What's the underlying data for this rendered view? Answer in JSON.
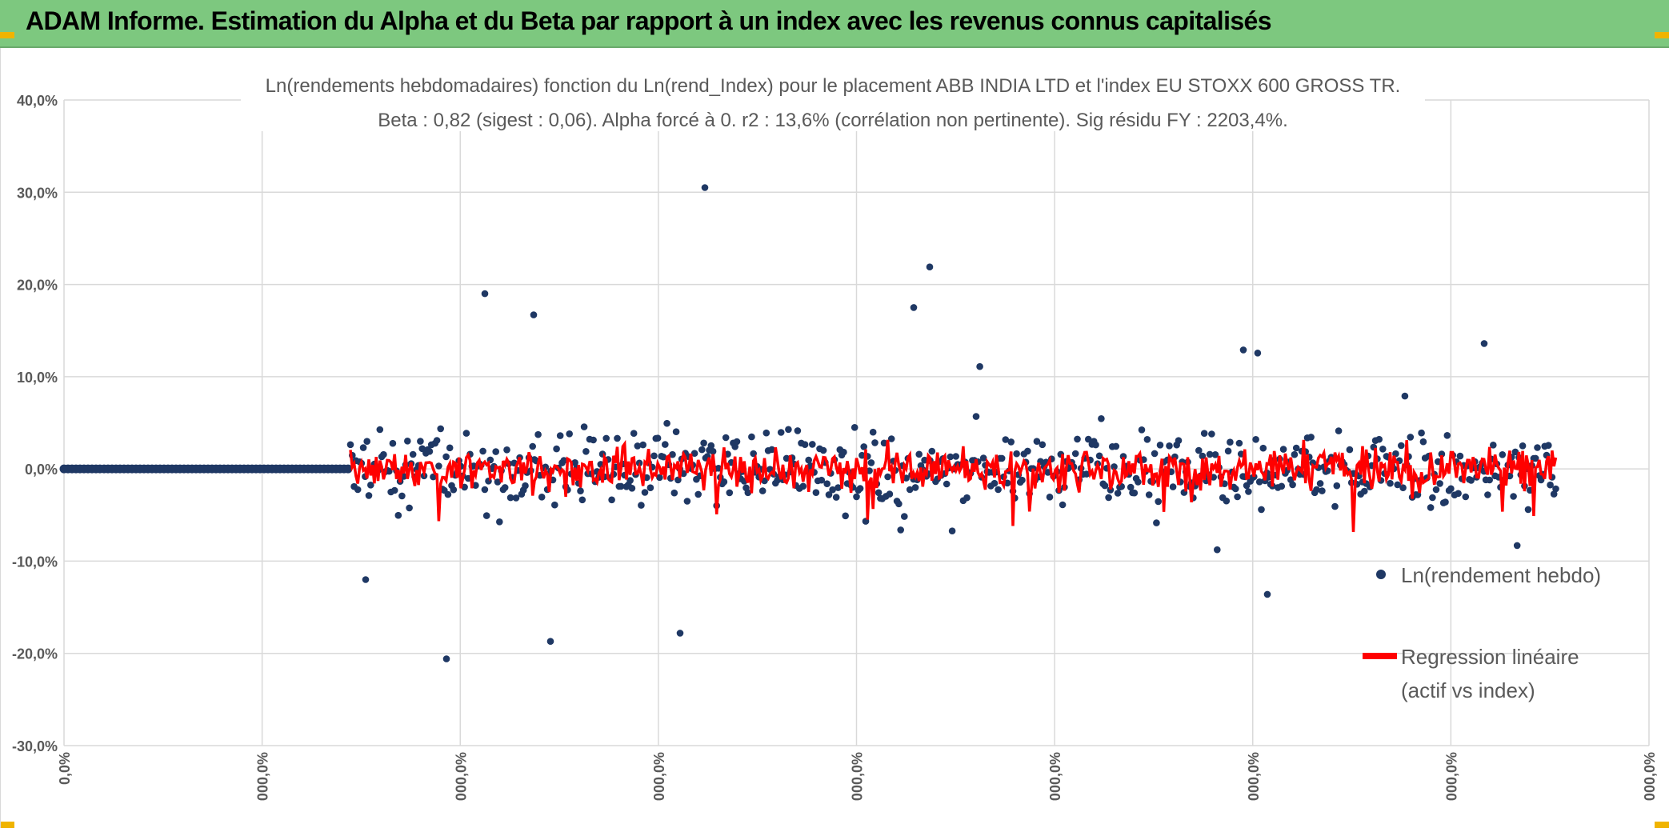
{
  "header": {
    "title": "ADAM Informe. Estimation du Alpha et du Beta par rapport à un index avec les revenus connus capitalisés"
  },
  "colors": {
    "header_bg": "#7dc87f",
    "points": "#1f3864",
    "regression": "#ff0000",
    "grid": "#d9d9d9",
    "accent_corner": "#f0b400"
  },
  "chart_data": {
    "type": "scatter",
    "title": "Ln(rendements hebdomadaires) fonction du Ln(rend_Index) pour le placement ABB INDIA LTD et l'index EU STOXX 600 GROSS TR.",
    "subtitle": "Beta : 0,82 (sigest : 0,06). Alpha forcé à 0. r2 : 13,6% (corrélation non pertinente). Sig résidu FY : 2203,4%.",
    "y_ticks": [
      "40,0%",
      "30,0%",
      "20,0%",
      "10,0%",
      "0,0%",
      "-10,0%",
      "-20,0%",
      "-30,0%"
    ],
    "x_ticks": [
      "0,0%",
      "000,0%",
      "000,0%",
      "000,0%",
      "000,0%",
      "000,0%",
      "000,0%",
      "000,0%",
      "000,0%"
    ],
    "ylim": [
      -0.3,
      0.4
    ],
    "grid": true,
    "legend_position": "right",
    "series": [
      {
        "name": "Ln(rendement hebdo)",
        "style": "points"
      },
      {
        "name": "Regression linéaire (actif vs index)",
        "style": "line"
      }
    ],
    "legend_entries": [
      "Ln(rendement hebdo)",
      "Regression linéaire",
      "(actif vs index)"
    ]
  }
}
